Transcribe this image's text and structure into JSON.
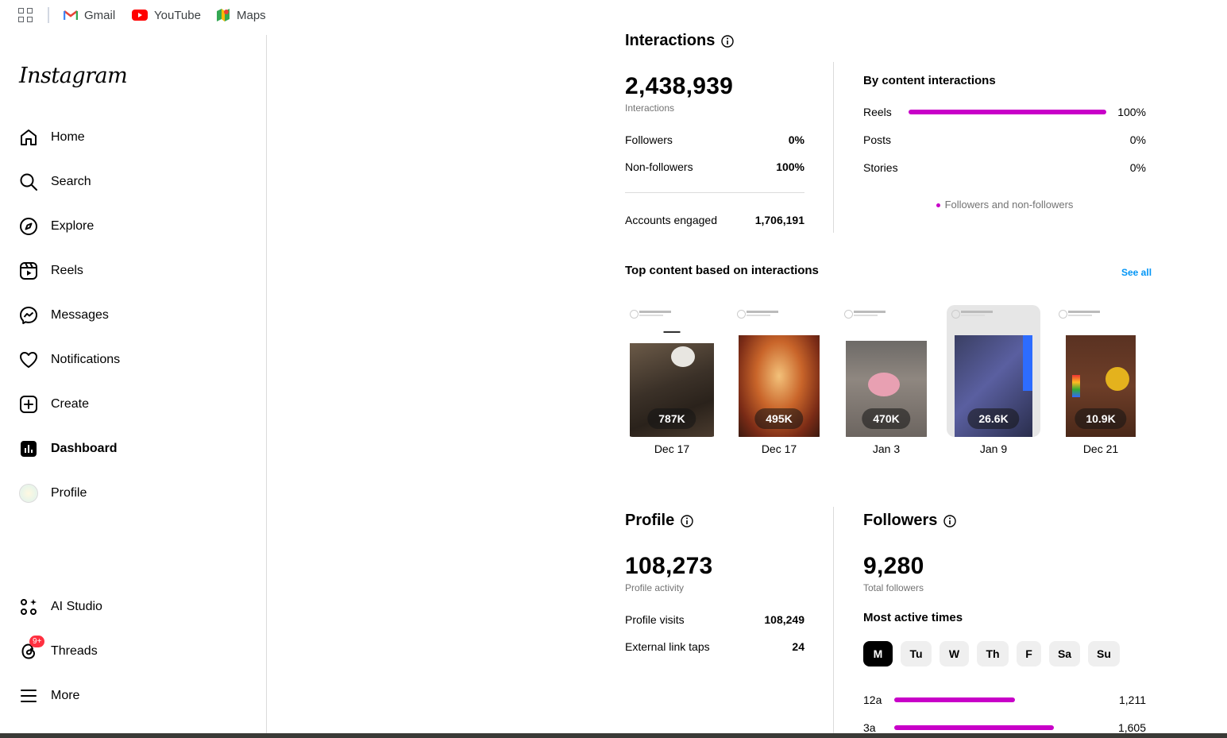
{
  "bookmarks": {
    "gmail": "Gmail",
    "youtube": "YouTube",
    "maps": "Maps"
  },
  "sidebar": {
    "logo": "Instagram",
    "items": [
      {
        "label": "Home",
        "icon": "home-icon"
      },
      {
        "label": "Search",
        "icon": "search-icon"
      },
      {
        "label": "Explore",
        "icon": "compass-icon"
      },
      {
        "label": "Reels",
        "icon": "reels-icon"
      },
      {
        "label": "Messages",
        "icon": "messenger-icon"
      },
      {
        "label": "Notifications",
        "icon": "heart-icon"
      },
      {
        "label": "Create",
        "icon": "plus-square-icon"
      },
      {
        "label": "Dashboard",
        "icon": "dashboard-icon",
        "active": true
      },
      {
        "label": "Profile",
        "icon": "avatar"
      },
      {
        "label": "AI Studio",
        "icon": "ai-studio-icon"
      },
      {
        "label": "Threads",
        "icon": "threads-icon",
        "badge": "9+"
      },
      {
        "label": "More",
        "icon": "menu-icon"
      }
    ]
  },
  "interactions": {
    "title": "Interactions",
    "total": "2,438,939",
    "total_label": "Interactions",
    "followers_label": "Followers",
    "followers_value": "0%",
    "nonfollowers_label": "Non-followers",
    "nonfollowers_value": "100%",
    "accounts_label": "Accounts engaged",
    "accounts_value": "1,706,191"
  },
  "by_content": {
    "title": "By content interactions",
    "rows": [
      {
        "label": "Reels",
        "value": "100%",
        "fraction": 1.0
      },
      {
        "label": "Posts",
        "value": "0%",
        "fraction": 0
      },
      {
        "label": "Stories",
        "value": "0%",
        "fraction": 0
      }
    ],
    "legend": "Followers and non-followers",
    "bar_color": "#c800c8"
  },
  "top_content": {
    "title": "Top content based on interactions",
    "see_all": "See all",
    "items": [
      {
        "count": "787K",
        "date": "Dec 17"
      },
      {
        "count": "495K",
        "date": "Dec 17"
      },
      {
        "count": "470K",
        "date": "Jan 3"
      },
      {
        "count": "26.6K",
        "date": "Jan 9"
      },
      {
        "count": "10.9K",
        "date": "Dec 21"
      }
    ]
  },
  "profile": {
    "title": "Profile",
    "total": "108,273",
    "total_label": "Profile activity",
    "visits_label": "Profile visits",
    "visits_value": "108,249",
    "taps_label": "External link taps",
    "taps_value": "24"
  },
  "followers": {
    "title": "Followers",
    "total": "9,280",
    "total_label": "Total followers",
    "active_title": "Most active times",
    "days": [
      "M",
      "Tu",
      "W",
      "Th",
      "F",
      "Sa",
      "Su"
    ],
    "selected_day": "M",
    "hours": [
      {
        "label": "12a",
        "value": "1,211",
        "fraction": 0.755
      },
      {
        "label": "3a",
        "value": "1,605",
        "fraction": 1.0
      }
    ]
  }
}
